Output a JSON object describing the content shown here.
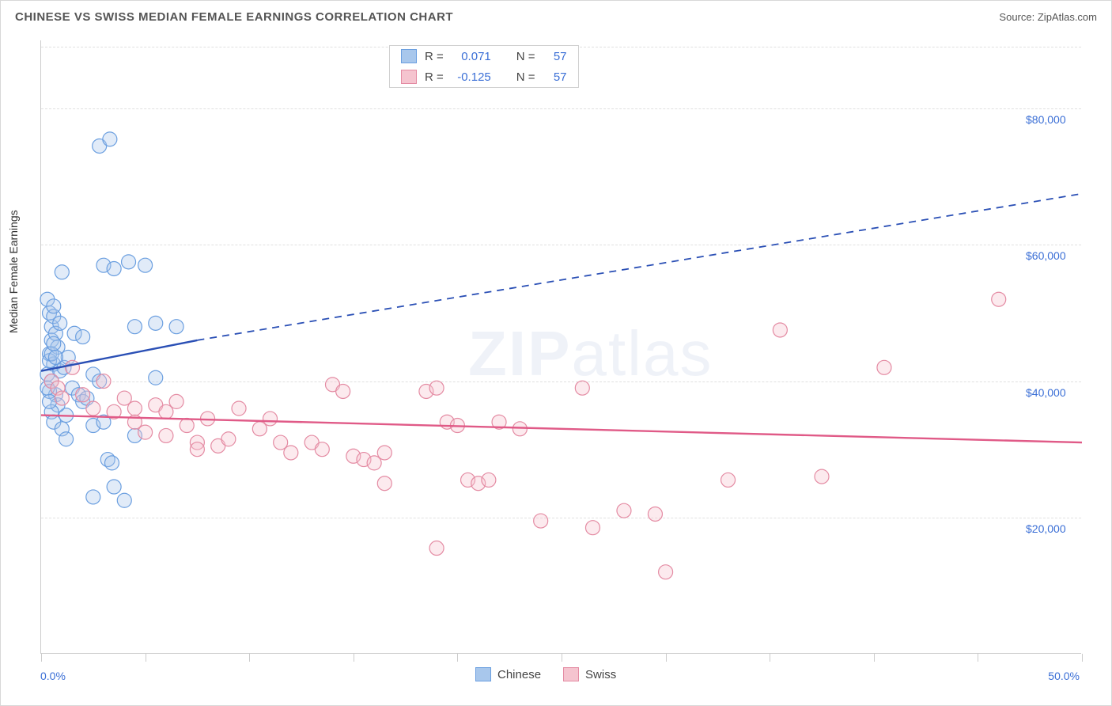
{
  "title": "CHINESE VS SWISS MEDIAN FEMALE EARNINGS CORRELATION CHART",
  "source_label": "Source:",
  "source_name": "ZipAtlas.com",
  "y_axis_label": "Median Female Earnings",
  "watermark": {
    "bold": "ZIP",
    "rest": "atlas"
  },
  "chart": {
    "type": "scatter",
    "xlim": [
      0,
      50
    ],
    "ylim": [
      0,
      90000
    ],
    "x_ticks": [
      0,
      5,
      10,
      15,
      20,
      25,
      30,
      35,
      40,
      45,
      50
    ],
    "x_tick_labels_shown": {
      "0": "0.0%",
      "50": "50.0%"
    },
    "y_gridlines": [
      20000,
      40000,
      60000,
      80000
    ],
    "y_tick_labels": {
      "20000": "$20,000",
      "40000": "$40,000",
      "60000": "$60,000",
      "80000": "$80,000"
    },
    "grid_color": "#e0e0e0",
    "axis_color": "#cccccc",
    "background_color": "#ffffff",
    "marker_radius": 9,
    "marker_stroke_width": 1.2,
    "marker_fill_opacity": 0.35,
    "series": [
      {
        "name": "Chinese",
        "color_fill": "#a8c7ec",
        "color_stroke": "#6b9fe0",
        "trend_color": "#2a4fb5",
        "trend_width": 2.4,
        "trend_start": [
          0,
          41500
        ],
        "trend_solid_end": [
          7.5,
          46000
        ],
        "trend_dashed_end": [
          50,
          67500
        ],
        "stats": {
          "R": "0.071",
          "N": "57"
        },
        "points": [
          [
            0.3,
            52000
          ],
          [
            0.4,
            50000
          ],
          [
            0.5,
            48000
          ],
          [
            0.6,
            49500
          ],
          [
            0.5,
            46000
          ],
          [
            0.7,
            47000
          ],
          [
            0.4,
            44000
          ],
          [
            0.6,
            42500
          ],
          [
            0.3,
            41000
          ],
          [
            0.5,
            40000
          ],
          [
            0.4,
            43000
          ],
          [
            0.8,
            45000
          ],
          [
            0.6,
            51000
          ],
          [
            0.9,
            48500
          ],
          [
            1.0,
            56000
          ],
          [
            1.5,
            39000
          ],
          [
            1.8,
            38000
          ],
          [
            2.0,
            37000
          ],
          [
            1.2,
            35000
          ],
          [
            2.2,
            37500
          ],
          [
            2.5,
            41000
          ],
          [
            2.8,
            40000
          ],
          [
            0.9,
            41500
          ],
          [
            1.1,
            42000
          ],
          [
            1.3,
            43500
          ],
          [
            1.6,
            47000
          ],
          [
            3.0,
            57000
          ],
          [
            3.5,
            56500
          ],
          [
            3.2,
            28500
          ],
          [
            3.4,
            28000
          ],
          [
            4.5,
            48000
          ],
          [
            5.5,
            48500
          ],
          [
            6.5,
            48000
          ],
          [
            2.5,
            23000
          ],
          [
            3.5,
            24500
          ],
          [
            4.0,
            22500
          ],
          [
            4.5,
            32000
          ],
          [
            5.5,
            40500
          ],
          [
            2.8,
            74500
          ],
          [
            3.3,
            75500
          ],
          [
            4.2,
            57500
          ],
          [
            5.0,
            57000
          ],
          [
            2.0,
            46500
          ],
          [
            0.7,
            38000
          ],
          [
            0.8,
            36500
          ],
          [
            0.4,
            38500
          ],
          [
            0.5,
            35500
          ],
          [
            0.6,
            34000
          ],
          [
            1.0,
            33000
          ],
          [
            1.2,
            31500
          ],
          [
            0.3,
            39000
          ],
          [
            0.4,
            37000
          ],
          [
            0.5,
            44000
          ],
          [
            0.6,
            45500
          ],
          [
            0.7,
            43500
          ],
          [
            2.5,
            33500
          ],
          [
            3.0,
            34000
          ]
        ]
      },
      {
        "name": "Swiss",
        "color_fill": "#f5c4cf",
        "color_stroke": "#e48ba3",
        "trend_color": "#e05a87",
        "trend_width": 2.4,
        "trend_start": [
          0,
          35000
        ],
        "trend_solid_end": [
          50,
          31000
        ],
        "trend_dashed_end": null,
        "stats": {
          "R": "-0.125",
          "N": "57"
        },
        "points": [
          [
            0.5,
            40000
          ],
          [
            0.8,
            39000
          ],
          [
            1.0,
            37500
          ],
          [
            1.5,
            42000
          ],
          [
            2.0,
            38000
          ],
          [
            2.5,
            36000
          ],
          [
            3.0,
            40000
          ],
          [
            3.5,
            35500
          ],
          [
            4.0,
            37500
          ],
          [
            4.5,
            34000
          ],
          [
            5.0,
            32500
          ],
          [
            5.5,
            36500
          ],
          [
            6.0,
            35500
          ],
          [
            6.5,
            37000
          ],
          [
            7.0,
            33500
          ],
          [
            7.5,
            31000
          ],
          [
            8.0,
            34500
          ],
          [
            8.5,
            30500
          ],
          [
            9.0,
            31500
          ],
          [
            9.5,
            36000
          ],
          [
            10.5,
            33000
          ],
          [
            11.0,
            34500
          ],
          [
            11.5,
            31000
          ],
          [
            12.0,
            29500
          ],
          [
            13.0,
            31000
          ],
          [
            13.5,
            30000
          ],
          [
            14.0,
            39500
          ],
          [
            14.5,
            38500
          ],
          [
            15.0,
            29000
          ],
          [
            15.5,
            28500
          ],
          [
            16.0,
            28000
          ],
          [
            16.5,
            29500
          ],
          [
            18.5,
            38500
          ],
          [
            19.0,
            39000
          ],
          [
            19.5,
            34000
          ],
          [
            20.0,
            33500
          ],
          [
            19.0,
            15500
          ],
          [
            20.5,
            25500
          ],
          [
            21.0,
            25000
          ],
          [
            21.5,
            25500
          ],
          [
            22.0,
            34000
          ],
          [
            24.0,
            19500
          ],
          [
            26.0,
            39000
          ],
          [
            26.5,
            18500
          ],
          [
            28.0,
            21000
          ],
          [
            29.5,
            20500
          ],
          [
            30.0,
            12000
          ],
          [
            33.0,
            25500
          ],
          [
            35.5,
            47500
          ],
          [
            37.5,
            26000
          ],
          [
            40.5,
            42000
          ],
          [
            46.0,
            52000
          ],
          [
            4.5,
            36000
          ],
          [
            6.0,
            32000
          ],
          [
            7.5,
            30000
          ],
          [
            16.5,
            25000
          ],
          [
            23.0,
            33000
          ]
        ]
      }
    ]
  },
  "stats_legend": {
    "R_label": "R =",
    "N_label": "N ="
  },
  "bottom_legend_labels": [
    "Chinese",
    "Swiss"
  ],
  "colors": {
    "title_text": "#555555",
    "axis_value_text": "#3b6fd6",
    "body_text": "#444444"
  }
}
